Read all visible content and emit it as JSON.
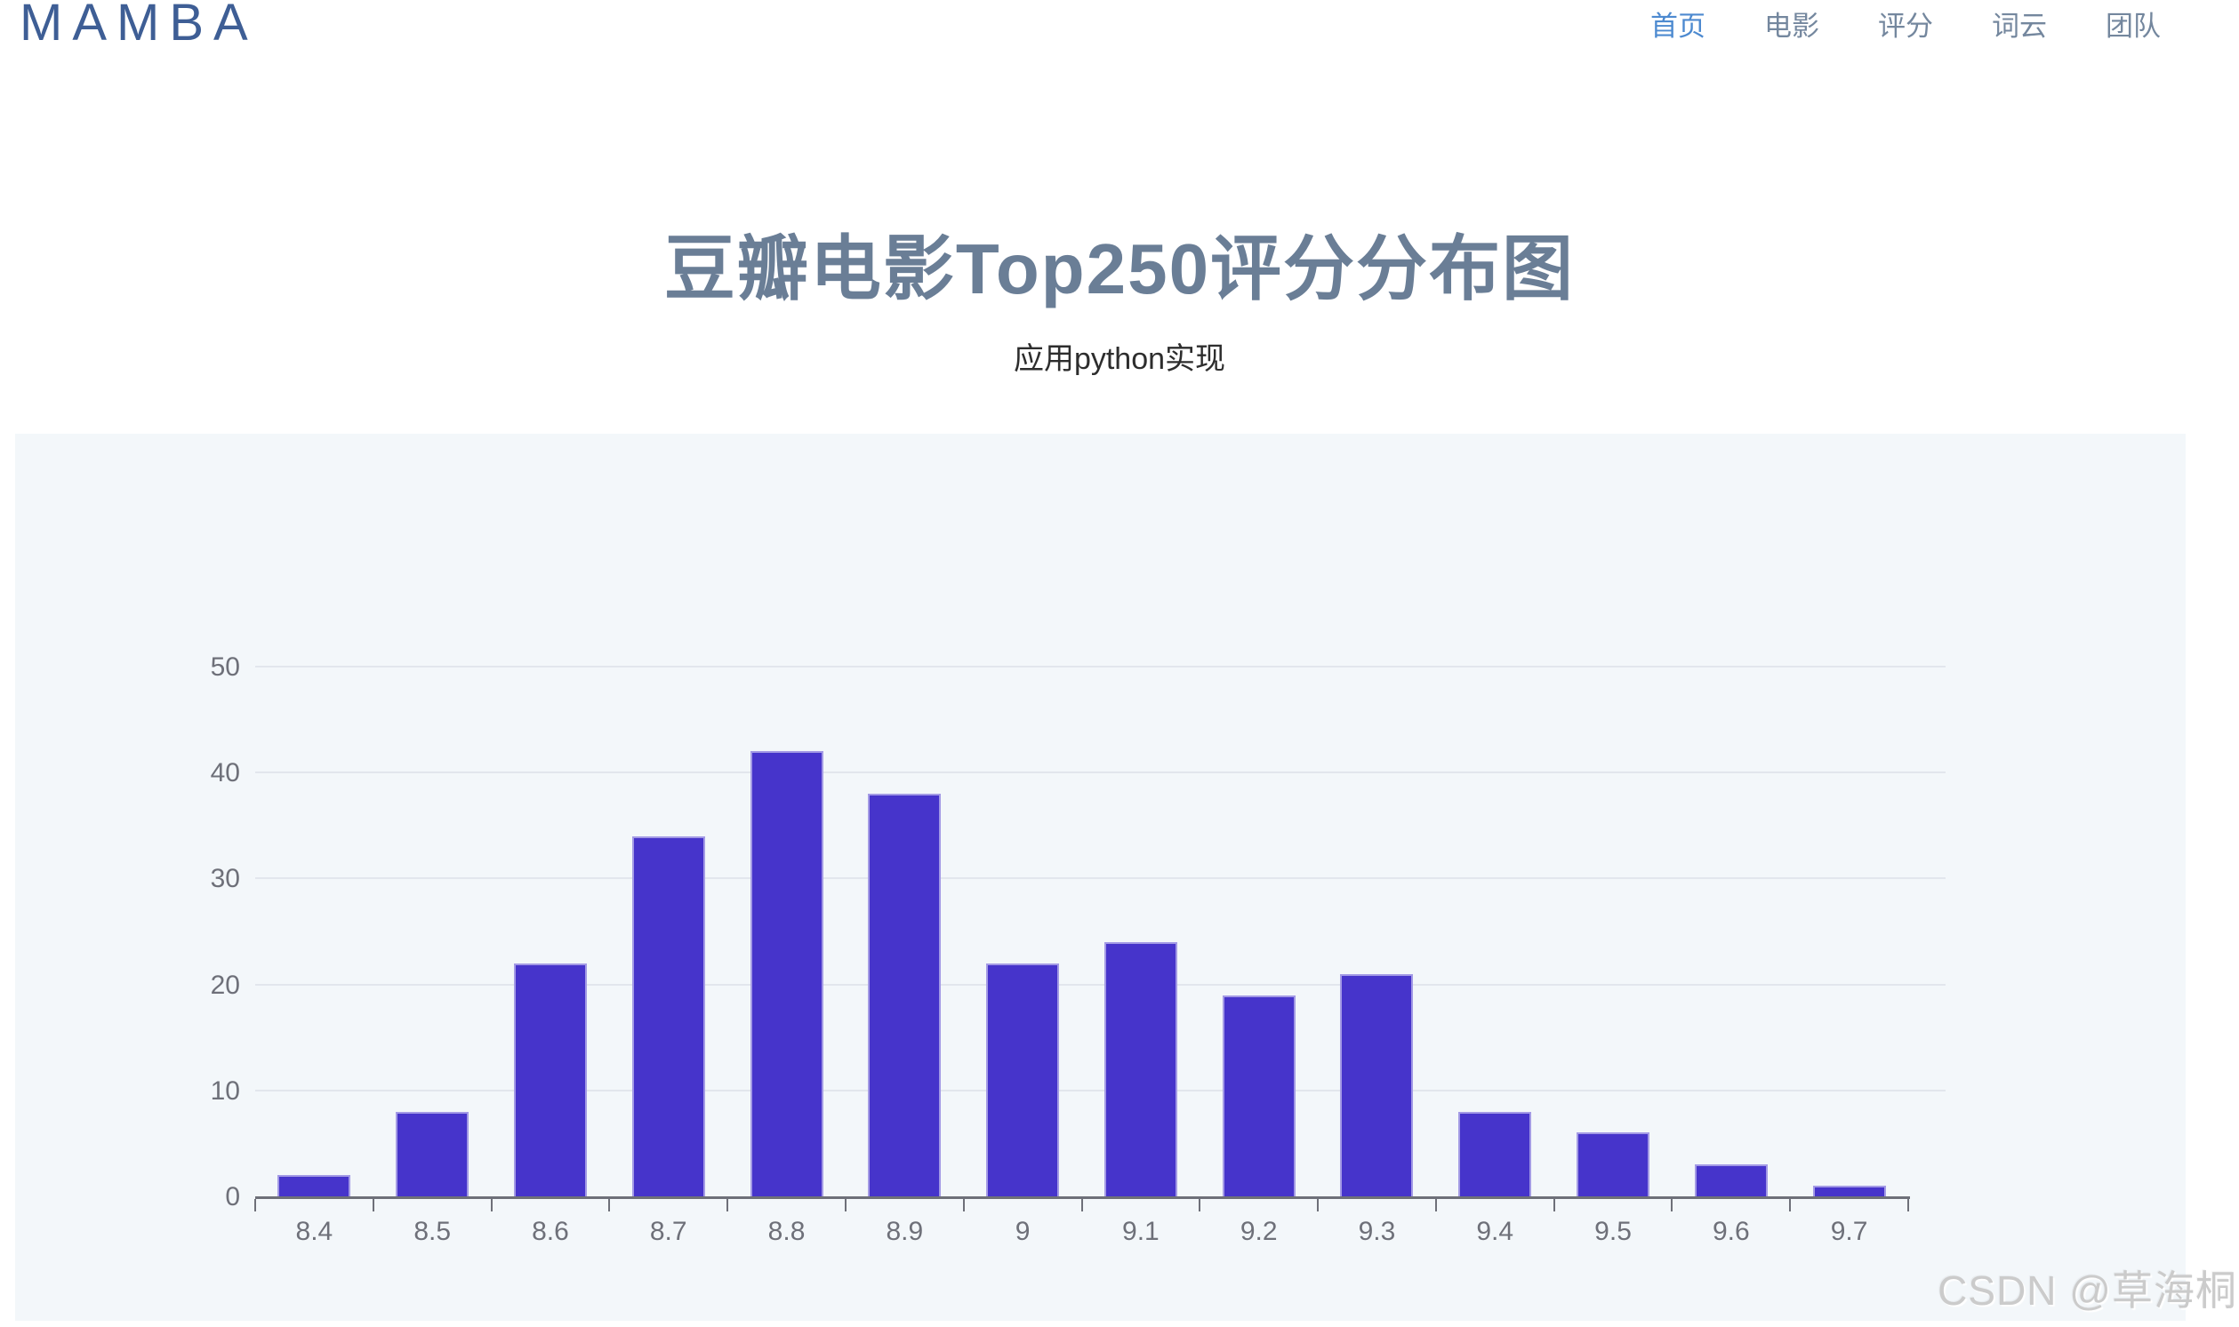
{
  "header": {
    "logo": "MAMBA",
    "nav": [
      {
        "label": "首页",
        "active": true
      },
      {
        "label": "电影",
        "active": false
      },
      {
        "label": "评分",
        "active": false
      },
      {
        "label": "词云",
        "active": false
      },
      {
        "label": "团队",
        "active": false
      }
    ]
  },
  "hero": {
    "title": "豆瓣电影Top250评分分布图",
    "subtitle": "应用python实现"
  },
  "chart_data": {
    "type": "bar",
    "title": "豆瓣电影Top250评分分布图",
    "subtitle": "应用python实现",
    "categories": [
      "8.4",
      "8.5",
      "8.6",
      "8.7",
      "8.8",
      "8.9",
      "9",
      "9.1",
      "9.2",
      "9.3",
      "9.4",
      "9.5",
      "9.6",
      "9.7"
    ],
    "values": [
      2,
      8,
      22,
      34,
      42,
      38,
      22,
      24,
      19,
      21,
      8,
      6,
      3,
      1
    ],
    "xlabel": "",
    "ylabel": "",
    "ylim": [
      0,
      50
    ],
    "yticks": [
      0,
      10,
      20,
      30,
      40,
      50
    ],
    "grid": true,
    "legend_position": "none",
    "bar_color": "#4634cb",
    "panel_background": "#f3f7fa"
  },
  "watermark": "CSDN @草海桐",
  "colors": {
    "logo": "#3e5e95",
    "nav_active": "#4d8ad0",
    "nav_inactive": "#74879e",
    "title": "#6a7e96",
    "subtitle": "#2d2d2d",
    "bar": "#4634cb",
    "panel_background": "#f3f7fa",
    "grid_line": "#e2e6ed",
    "axis_line": "#6e7079",
    "axis_label": "#6e7079",
    "watermark": "#cbcbcb"
  }
}
